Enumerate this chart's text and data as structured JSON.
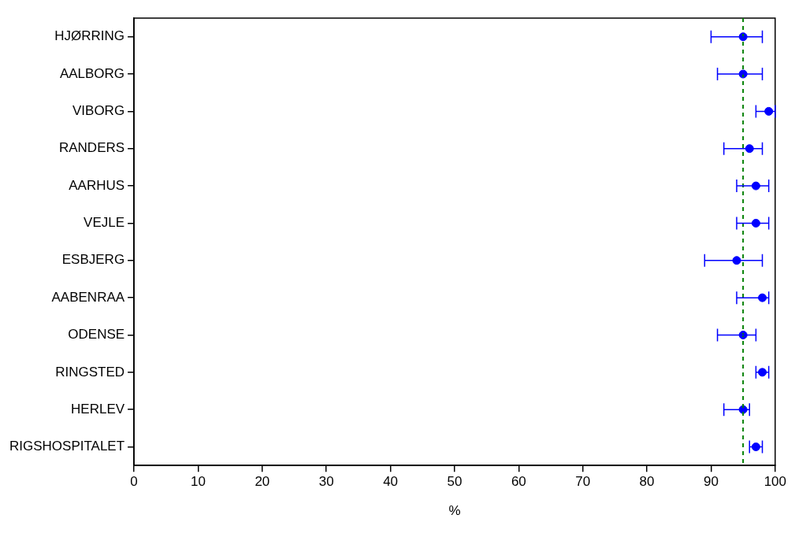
{
  "chart_data": {
    "type": "scatter",
    "orientation": "horizontal",
    "xlabel": "%",
    "categories": [
      "HJØRRING",
      "AALBORG",
      "VIBORG",
      "RANDERS",
      "AARHUS",
      "VEJLE",
      "ESBJERG",
      "AABENRAA",
      "ODENSE",
      "RINGSTED",
      "HERLEV",
      "RIGSHOSPITALET"
    ],
    "series": [
      {
        "color": "#0000ff",
        "values": [
          95,
          95,
          99,
          96,
          97,
          97,
          94,
          98,
          95,
          98,
          95,
          97
        ],
        "errors": [
          [
            90,
            98
          ],
          [
            91,
            98
          ],
          [
            97,
            100
          ],
          [
            92,
            98
          ],
          [
            94,
            99
          ],
          [
            94,
            99
          ],
          [
            89,
            98
          ],
          [
            94,
            99
          ],
          [
            91,
            97
          ],
          [
            97,
            99
          ],
          [
            92,
            96
          ],
          [
            96,
            98
          ]
        ]
      }
    ],
    "xlim": [
      0,
      100
    ],
    "xticks": [
      0,
      10,
      20,
      30,
      40,
      50,
      60,
      70,
      80,
      90,
      100
    ],
    "ref_lines": [
      {
        "axis": "x",
        "value": 95,
        "color": "#008000",
        "line_style": "dashed"
      }
    ],
    "marker": "circle",
    "grid": false,
    "legend": false
  }
}
